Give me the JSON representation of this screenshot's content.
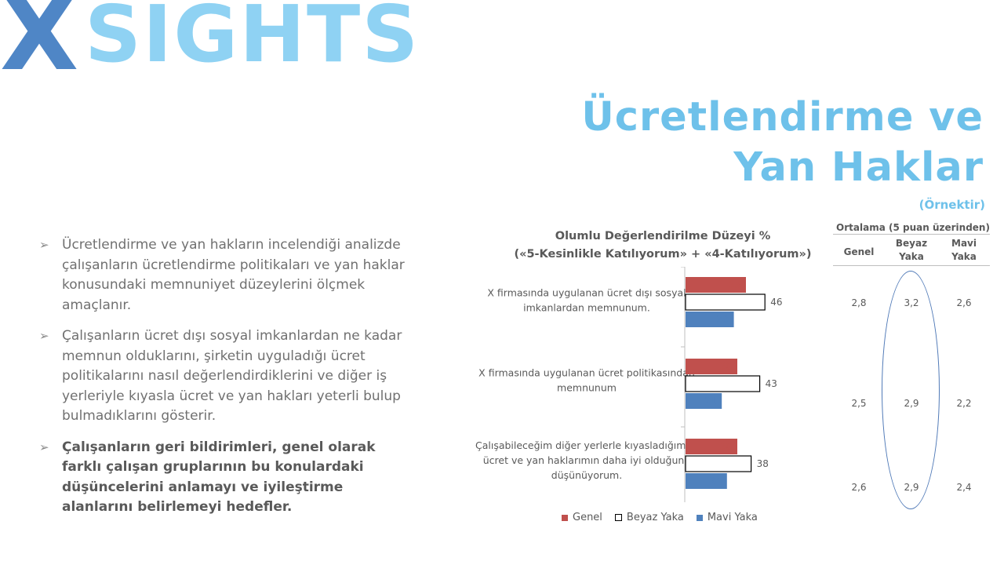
{
  "logo": {
    "text": "XSIGHTS",
    "x_letter": "X",
    "rest": "SIGHTS"
  },
  "header": {
    "title_line1": "Ücretlendirme ve",
    "title_line2": "Yan Haklar",
    "subtitle": "(Örnektir)"
  },
  "bullets": [
    {
      "text": "Ücretlendirme ve yan hakların incelendiği analizde çalışanların ücretlendirme politikaları ve yan haklar konusundaki memnuniyet düzeylerini ölçmek amaçlanır.",
      "bold": false
    },
    {
      "text": " Çalışanların ücret dışı sosyal imkanlardan ne kadar memnun olduklarını, şirketin uyguladığı ücret politikalarını nasıl değerlendirdiklerini ve diğer iş yerleriyle kıyasla ücret ve yan hakları yeterli bulup bulmadıklarını gösterir.",
      "bold": false
    },
    {
      "text": "Çalışanların geri bildirimleri, genel olarak farklı çalışan gruplarının bu konulardaki düşüncelerini anlamayı ve iyileştirme alanlarını belirlemeyi hedefler.",
      "bold": true
    }
  ],
  "chart_data": {
    "type": "bar",
    "orientation": "horizontal",
    "title": "Olumlu Değerlendirilme Düzeyi  %",
    "subtitle": "(«5-Kesinlikle Katılıyorum» + «4-Katılıyorum»)",
    "categories": [
      [
        "X firmasında uygulanan ücret dışı sosyal",
        "imkanlardan memnunum."
      ],
      [
        "X firmasında uygulanan ücret politikasından",
        "memnunum"
      ],
      [
        "Çalışabileceğim diğer yerlerle kıyasladığımda",
        "ücret ve yan haklarımın daha iyi olduğunu",
        "düşünüyorum."
      ]
    ],
    "series": [
      {
        "name": "Genel",
        "color": "#c0504d",
        "values": [
          35,
          30,
          30
        ]
      },
      {
        "name": "Beyaz Yaka",
        "color": "#ffffff",
        "values": [
          46,
          43,
          38
        ]
      },
      {
        "name": "Mavi Yaka",
        "color": "#4f81bd",
        "values": [
          28,
          21,
          24
        ]
      }
    ],
    "xlim": [
      0,
      100
    ],
    "legend": "bottom"
  },
  "averages": {
    "title": "Ortalama (5 puan üzerinden)",
    "columns": [
      "Genel",
      "Beyaz Yaka",
      "Mavi Yaka"
    ],
    "rows": [
      [
        "2,8",
        "3,2",
        "2,6"
      ],
      [
        "2,5",
        "2,9",
        "2,2"
      ],
      [
        "2,6",
        "2,9",
        "2,4"
      ]
    ]
  },
  "colors": {
    "title": "#6ec1ea",
    "logo_x": "#4f86c6",
    "logo_rest": "#8fd2f3"
  }
}
